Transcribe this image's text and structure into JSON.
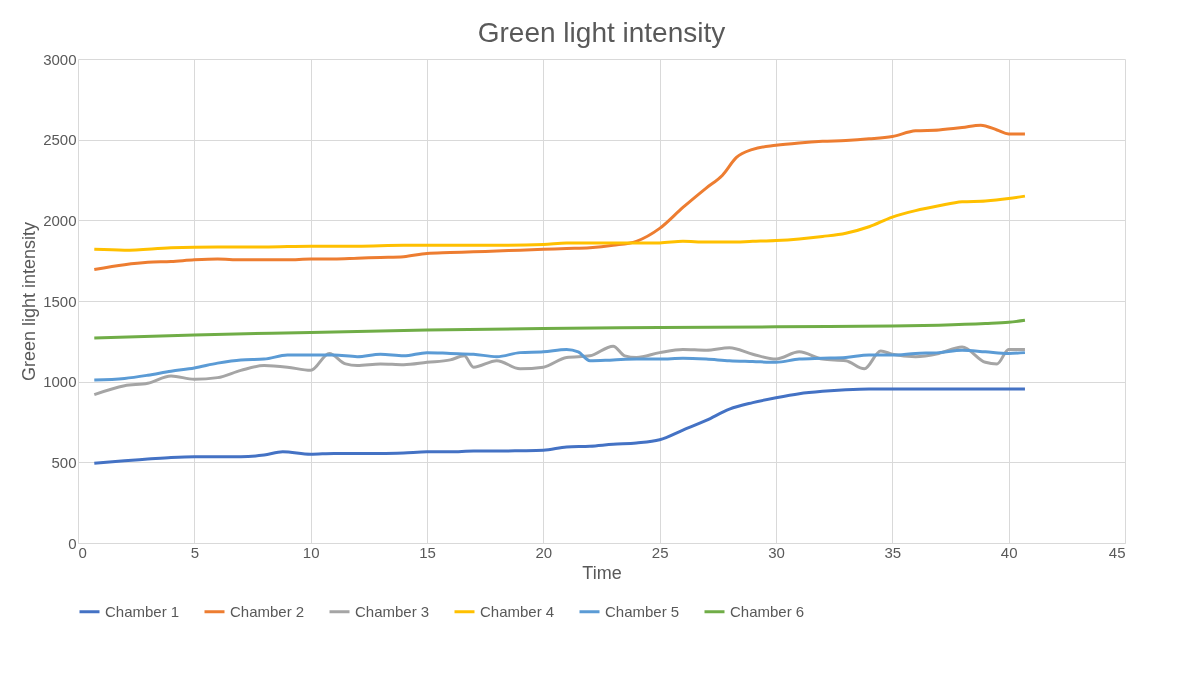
{
  "chart_data": {
    "type": "line",
    "title": "Green light intensity",
    "xlabel": "Time",
    "ylabel": "Green light intensity",
    "xlim": [
      0,
      45
    ],
    "xticks": [
      0,
      5,
      10,
      15,
      20,
      25,
      30,
      35,
      40,
      45
    ],
    "ylim": [
      0,
      3000
    ],
    "yticks": [
      0,
      500,
      1000,
      1500,
      2000,
      2500,
      3000
    ],
    "grid": true,
    "legend": "bottom",
    "marker": "none",
    "line_style": "solid",
    "series": [
      {
        "name": "Chamber 1",
        "color": "#4472c4",
        "x": [
          0.7,
          2,
          3,
          4,
          5,
          6,
          7,
          8,
          8.8,
          10,
          11,
          12,
          13,
          14,
          15,
          16,
          17,
          18,
          19,
          20,
          21,
          22,
          23,
          24,
          25,
          26,
          27,
          28,
          29,
          30,
          31,
          32,
          33,
          34,
          35,
          36,
          37,
          38,
          39,
          40,
          40.7
        ],
        "values": [
          495,
          510,
          520,
          530,
          535,
          535,
          535,
          545,
          565,
          550,
          555,
          555,
          555,
          558,
          565,
          565,
          570,
          570,
          572,
          575,
          595,
          600,
          612,
          620,
          640,
          700,
          760,
          830,
          870,
          900,
          925,
          940,
          950,
          955,
          955,
          955,
          955,
          955,
          955,
          955,
          955
        ]
      },
      {
        "name": "Chamber 2",
        "color": "#ed7d31",
        "x": [
          0.7,
          2,
          3,
          4,
          5,
          6,
          7,
          8,
          9,
          10,
          11,
          12,
          13,
          14,
          15,
          16,
          17,
          18,
          19,
          20,
          21,
          22,
          23,
          24,
          25,
          26,
          27,
          27.7,
          28.3,
          29,
          30,
          31,
          32,
          33,
          34,
          35,
          36,
          37,
          38,
          38.8,
          39.5,
          40,
          40.7
        ],
        "values": [
          1695,
          1725,
          1740,
          1745,
          1755,
          1760,
          1755,
          1755,
          1755,
          1760,
          1760,
          1765,
          1770,
          1775,
          1795,
          1800,
          1805,
          1810,
          1815,
          1820,
          1825,
          1830,
          1845,
          1870,
          1950,
          2080,
          2200,
          2280,
          2390,
          2440,
          2465,
          2480,
          2490,
          2495,
          2505,
          2520,
          2555,
          2560,
          2575,
          2590,
          2560,
          2535,
          2535
        ]
      },
      {
        "name": "Chamber 3",
        "color": "#a5a5a5",
        "x": [
          0.7,
          2,
          3,
          4,
          5,
          6,
          7,
          8,
          9,
          10,
          10.8,
          11.5,
          12,
          13,
          14,
          15,
          16,
          16.6,
          17,
          18,
          19,
          20,
          21,
          22,
          23,
          23.5,
          24,
          25,
          26,
          27,
          28,
          29,
          30,
          31,
          32,
          33,
          33.8,
          34.5,
          35,
          36,
          37,
          38,
          39,
          39.5,
          40,
          40.7
        ],
        "values": [
          920,
          975,
          990,
          1035,
          1015,
          1025,
          1070,
          1100,
          1090,
          1070,
          1175,
          1110,
          1100,
          1110,
          1105,
          1120,
          1135,
          1160,
          1090,
          1130,
          1080,
          1090,
          1150,
          1160,
          1220,
          1160,
          1150,
          1180,
          1200,
          1195,
          1210,
          1170,
          1140,
          1185,
          1140,
          1130,
          1080,
          1190,
          1170,
          1155,
          1175,
          1215,
          1120,
          1110,
          1200,
          1200
        ]
      },
      {
        "name": "Chamber 4",
        "color": "#ffc000",
        "x": [
          0.7,
          2,
          4,
          6,
          8,
          10,
          12,
          14,
          16,
          18,
          20,
          21,
          22,
          23,
          24,
          25,
          26,
          27,
          28,
          29,
          30,
          31,
          32,
          33,
          34,
          35,
          36,
          37,
          38,
          39,
          40,
          40.7
        ],
        "values": [
          1820,
          1815,
          1830,
          1835,
          1835,
          1840,
          1840,
          1845,
          1845,
          1845,
          1850,
          1860,
          1860,
          1860,
          1860,
          1860,
          1870,
          1865,
          1865,
          1870,
          1875,
          1885,
          1900,
          1920,
          1960,
          2020,
          2060,
          2090,
          2115,
          2120,
          2135,
          2150
        ]
      },
      {
        "name": "Chamber 5",
        "color": "#5b9bd5",
        "x": [
          0.7,
          2,
          3,
          4,
          5,
          6,
          7,
          8,
          9,
          10,
          11,
          12,
          13,
          14,
          15,
          16,
          17,
          18,
          19,
          20,
          21,
          21.5,
          22,
          23,
          24,
          25,
          26,
          27,
          28,
          29,
          30,
          31,
          32,
          33,
          34,
          35,
          36,
          37,
          38,
          39,
          40,
          40.7
        ],
        "values": [
          1010,
          1020,
          1040,
          1065,
          1085,
          1115,
          1135,
          1140,
          1165,
          1165,
          1165,
          1155,
          1170,
          1160,
          1180,
          1175,
          1170,
          1155,
          1180,
          1185,
          1200,
          1185,
          1130,
          1135,
          1140,
          1140,
          1145,
          1140,
          1130,
          1125,
          1120,
          1140,
          1145,
          1150,
          1165,
          1165,
          1175,
          1180,
          1195,
          1185,
          1175,
          1180
        ]
      },
      {
        "name": "Chamber 6",
        "color": "#70ad47",
        "x": [
          0.7,
          5,
          10,
          15,
          20,
          25,
          30,
          35,
          37,
          39,
          40,
          40.7
        ],
        "values": [
          1270,
          1290,
          1305,
          1320,
          1330,
          1335,
          1340,
          1345,
          1350,
          1360,
          1368,
          1380
        ]
      }
    ]
  }
}
